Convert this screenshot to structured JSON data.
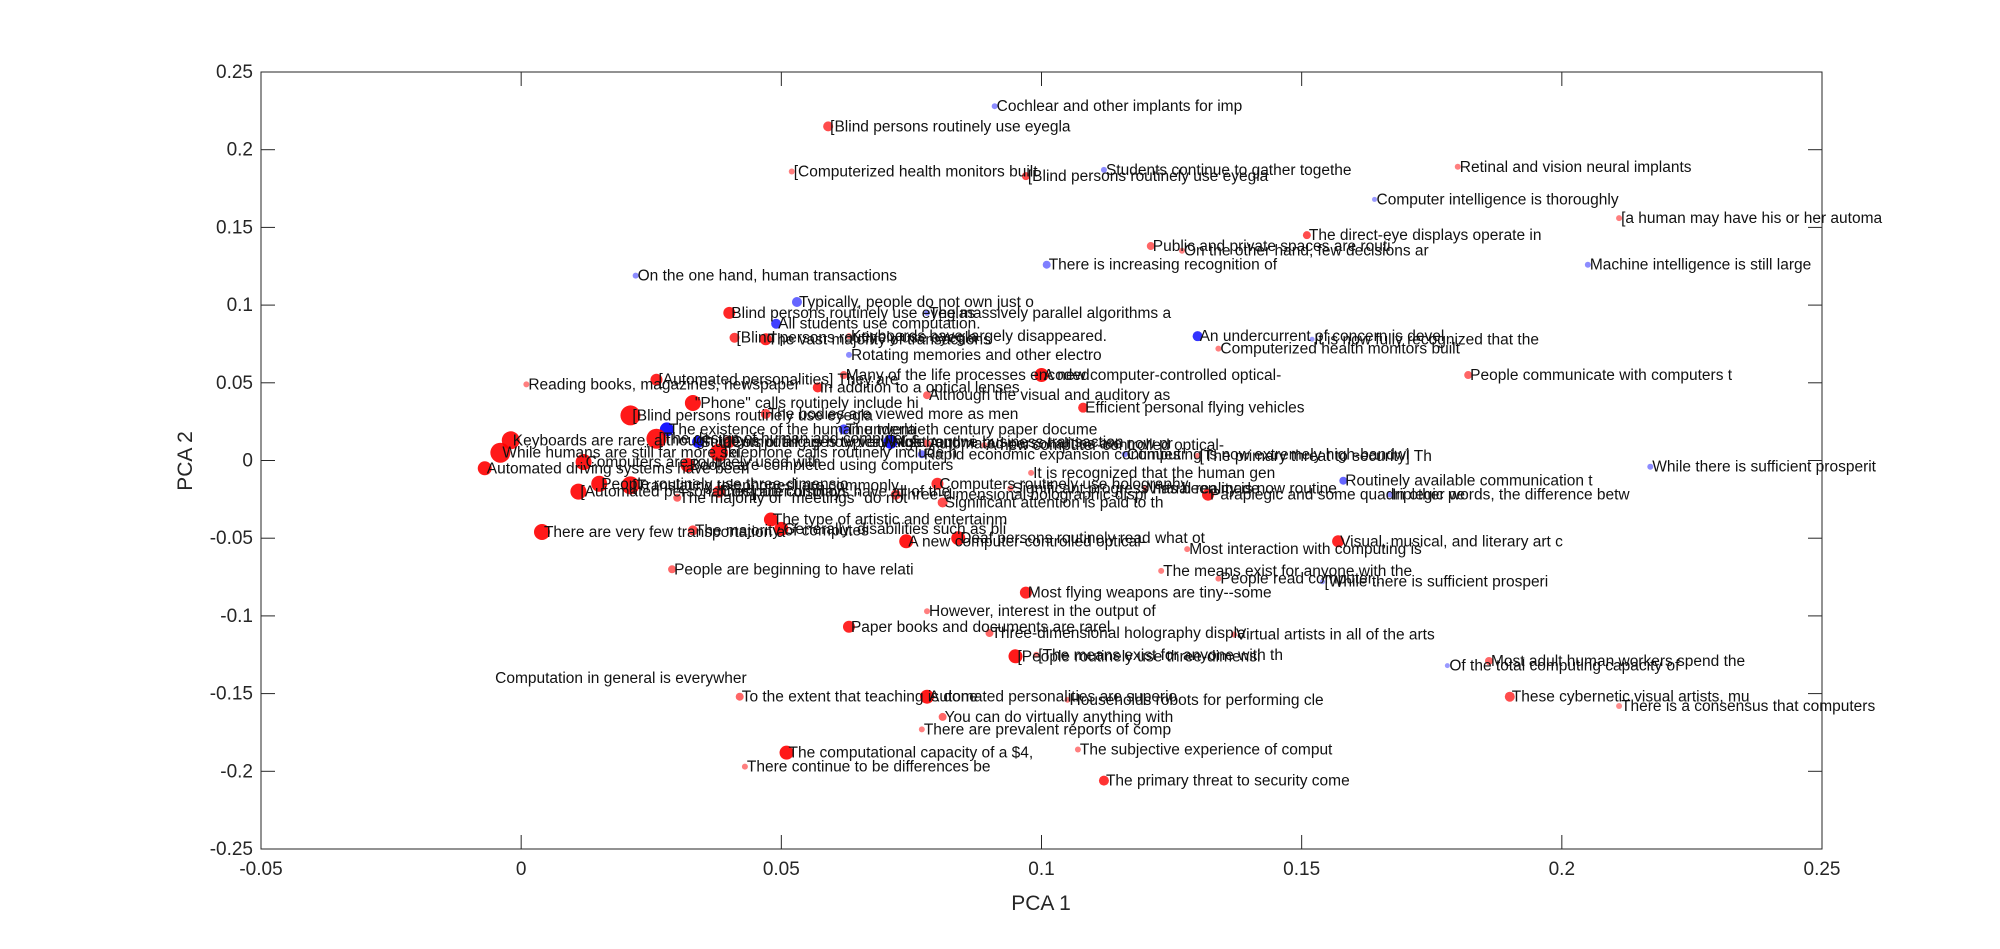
{
  "colors": {
    "red": "#ff0000",
    "blue": "#0000ff",
    "axis": "#262626"
  },
  "chart_data": {
    "type": "scatter",
    "xlabel": "PCA 1",
    "ylabel": "PCA 2",
    "xlim": [
      -0.05,
      0.25
    ],
    "ylim": [
      -0.25,
      0.25
    ],
    "xticks": [
      "-0.05",
      "0",
      "0.05",
      "0.1",
      "0.15",
      "0.2",
      "0.25"
    ],
    "yticks": [
      "0.25",
      "0.2",
      "0.15",
      "0.1",
      "0.05",
      "0",
      "-0.05",
      "-0.1",
      "-0.15",
      "-0.2",
      "-0.25"
    ],
    "grid": false,
    "points": [
      {
        "x": 0.091,
        "y": 0.228,
        "c": "blue",
        "s": 3,
        "o": 0.45,
        "label": "Cochlear and other implants for imp"
      },
      {
        "x": 0.059,
        "y": 0.215,
        "c": "red",
        "s": 5,
        "o": 0.7,
        "label": "[Blind persons routinely use eyegla"
      },
      {
        "x": 0.052,
        "y": 0.186,
        "c": "red",
        "s": 3,
        "o": 0.5,
        "label": "[Computerized health monitors built"
      },
      {
        "x": 0.097,
        "y": 0.183,
        "c": "red",
        "s": 4,
        "o": 0.7,
        "label": "[Blind persons routinely use eyegla"
      },
      {
        "x": 0.112,
        "y": 0.187,
        "c": "blue",
        "s": 3,
        "o": 0.45,
        "label": "Students continue to gather togethe"
      },
      {
        "x": 0.18,
        "y": 0.189,
        "c": "red",
        "s": 3,
        "o": 0.5,
        "label": "Retinal and vision neural implants"
      },
      {
        "x": 0.164,
        "y": 0.168,
        "c": "blue",
        "s": 2.5,
        "o": 0.4,
        "label": "Computer intelligence is thoroughly"
      },
      {
        "x": 0.211,
        "y": 0.156,
        "c": "red",
        "s": 3,
        "o": 0.5,
        "label": "[a human may have his or her automa"
      },
      {
        "x": 0.151,
        "y": 0.145,
        "c": "red",
        "s": 4,
        "o": 0.7,
        "label": "The direct-eye displays operate in"
      },
      {
        "x": 0.121,
        "y": 0.138,
        "c": "red",
        "s": 4,
        "o": 0.6,
        "label": "Public and private spaces are routi"
      },
      {
        "x": 0.127,
        "y": 0.135,
        "c": "red",
        "s": 3,
        "o": 0.5,
        "label": "On the other hand, few decisions ar"
      },
      {
        "x": 0.101,
        "y": 0.126,
        "c": "blue",
        "s": 4,
        "o": 0.5,
        "label": "There is increasing recognition of"
      },
      {
        "x": 0.205,
        "y": 0.126,
        "c": "blue",
        "s": 3,
        "o": 0.45,
        "label": "Machine intelligence is still large"
      },
      {
        "x": 0.022,
        "y": 0.119,
        "c": "blue",
        "s": 3,
        "o": 0.45,
        "label": "On the one hand, human transactions"
      },
      {
        "x": 0.053,
        "y": 0.102,
        "c": "blue",
        "s": 5,
        "o": 0.6,
        "label": "Typically, people do not own just o"
      },
      {
        "x": 0.078,
        "y": 0.095,
        "c": "blue",
        "s": 3,
        "o": 0.45,
        "label": "The massively parallel algorithms a"
      },
      {
        "x": 0.04,
        "y": 0.095,
        "c": "red",
        "s": 6,
        "o": 0.85,
        "label": "Blind persons routinely use eyeglas"
      },
      {
        "x": 0.049,
        "y": 0.088,
        "c": "blue",
        "s": 5,
        "o": 0.75,
        "label": "All students use computation."
      },
      {
        "x": 0.041,
        "y": 0.079,
        "c": "red",
        "s": 5,
        "o": 0.75,
        "label": "[Blind persons routinely use eyegla"
      },
      {
        "x": 0.047,
        "y": 0.078,
        "c": "red",
        "s": 6,
        "o": 0.85,
        "label": "The vast majority of transactions"
      },
      {
        "x": 0.063,
        "y": 0.08,
        "c": "red",
        "s": 3,
        "o": 0.5,
        "label": "Keyboards have largely disappeared."
      },
      {
        "x": 0.13,
        "y": 0.08,
        "c": "blue",
        "s": 5,
        "o": 0.8,
        "label": "An undercurrent of concern is devel"
      },
      {
        "x": 0.152,
        "y": 0.078,
        "c": "blue",
        "s": 2.5,
        "o": 0.4,
        "label": "It is now fully recognized that the"
      },
      {
        "x": 0.063,
        "y": 0.068,
        "c": "blue",
        "s": 3,
        "o": 0.45,
        "label": "Rotating memories and other electro"
      },
      {
        "x": 0.134,
        "y": 0.072,
        "c": "red",
        "s": 3,
        "o": 0.5,
        "label": "Computerized health monitors built"
      },
      {
        "x": 0.001,
        "y": 0.049,
        "c": "red",
        "s": 3,
        "o": 0.5,
        "label": "Reading books, magazines, newspaper"
      },
      {
        "x": 0.026,
        "y": 0.052,
        "c": "red",
        "s": 6,
        "o": 0.85,
        "label": "[Automated personalities] They are"
      },
      {
        "x": 0.062,
        "y": 0.055,
        "c": "red",
        "s": 4,
        "o": 0.6,
        "label": "Many of the life processes encoded"
      },
      {
        "x": 0.1,
        "y": 0.055,
        "c": "red",
        "s": 7,
        "o": 0.9,
        "label": "A new computer-controlled optical-"
      },
      {
        "x": 0.182,
        "y": 0.055,
        "c": "red",
        "s": 4,
        "o": 0.6,
        "label": "People communicate with computers t"
      },
      {
        "x": 0.057,
        "y": 0.047,
        "c": "red",
        "s": 5,
        "o": 0.8,
        "label": "In addition to a optical lenses"
      },
      {
        "x": 0.078,
        "y": 0.042,
        "c": "red",
        "s": 4,
        "o": 0.6,
        "label": "Although the visual and auditory as"
      },
      {
        "x": 0.033,
        "y": 0.037,
        "c": "red",
        "s": 8,
        "o": 0.9,
        "label": "\"Phone\" calls routinely include hi"
      },
      {
        "x": 0.108,
        "y": 0.034,
        "c": "red",
        "s": 5,
        "o": 0.8,
        "label": "Efficient personal flying vehicles"
      },
      {
        "x": 0.021,
        "y": 0.029,
        "c": "red",
        "s": 10,
        "o": 0.9,
        "label": "[Blind persons routinely use eyegla"
      },
      {
        "x": 0.047,
        "y": 0.03,
        "c": "red",
        "s": 5,
        "o": 0.7,
        "label": "The bodies are viewed more as men"
      },
      {
        "x": 0.028,
        "y": 0.02,
        "c": "blue",
        "s": 7,
        "o": 0.9,
        "label": "The existence of the human underla"
      },
      {
        "x": 0.062,
        "y": 0.02,
        "c": "blue",
        "s": 5,
        "o": 0.7,
        "label": "The twentieth century paper docume"
      },
      {
        "x": -0.002,
        "y": 0.013,
        "c": "red",
        "s": 9,
        "o": 0.9,
        "label": "Keyboards are rare, although they s"
      },
      {
        "x": 0.026,
        "y": 0.014,
        "c": "red",
        "s": 10,
        "o": 0.9,
        "label": "[The design of human and computer s"
      },
      {
        "x": 0.034,
        "y": 0.012,
        "c": "blue",
        "s": 6,
        "o": 0.9,
        "label": "Students of all ages typically use"
      },
      {
        "x": 0.04,
        "y": 0.012,
        "c": "red",
        "s": 6,
        "o": 0.8,
        "label": "Computing is now very high bandwi"
      },
      {
        "x": 0.071,
        "y": 0.012,
        "c": "blue",
        "s": 7,
        "o": 0.9,
        "label": "Most routine business transaction"
      },
      {
        "x": 0.078,
        "y": 0.011,
        "c": "red",
        "s": 4,
        "o": 0.6,
        "label": "Automated personalities are now pr"
      },
      {
        "x": 0.089,
        "y": 0.01,
        "c": "red",
        "s": 3,
        "o": 0.5,
        "label": "A new computer-controlled optical-"
      },
      {
        "x": -0.004,
        "y": 0.005,
        "c": "red",
        "s": 10,
        "o": 0.9,
        "label": "While humans are still far more ski"
      },
      {
        "x": 0.038,
        "y": 0.005,
        "c": "red",
        "s": 9,
        "o": 0.9,
        "label": "Telephone calls routinely include h"
      },
      {
        "x": 0.077,
        "y": 0.004,
        "c": "blue",
        "s": 4,
        "o": 0.55,
        "label": "Rapid economic expansion continues"
      },
      {
        "x": 0.116,
        "y": 0.004,
        "c": "blue",
        "s": 3,
        "o": 0.45,
        "label": "Computing is now extremely high-bandwi"
      },
      {
        "x": 0.13,
        "y": 0.003,
        "c": "red",
        "s": 3,
        "o": 0.5,
        "label": "[The primary threat to security] Th"
      },
      {
        "x": 0.217,
        "y": -0.004,
        "c": "blue",
        "s": 3,
        "o": 0.45,
        "label": "While there is sufficient prosperit"
      },
      {
        "x": -0.007,
        "y": -0.005,
        "c": "red",
        "s": 7,
        "o": 0.9,
        "label": "Automated driving systems have been"
      },
      {
        "x": 0.012,
        "y": -0.001,
        "c": "red",
        "s": 8,
        "o": 0.9,
        "label": "Computers are routinely used with"
      },
      {
        "x": 0.032,
        "y": -0.003,
        "c": "red",
        "s": 7,
        "o": 0.9,
        "label": "Books are completed using computers"
      },
      {
        "x": 0.098,
        "y": -0.008,
        "c": "red",
        "s": 3,
        "o": 0.5,
        "label": "It is recognized that the human gen"
      },
      {
        "x": 0.158,
        "y": -0.013,
        "c": "blue",
        "s": 4,
        "o": 0.6,
        "label": "Routinely available communication t"
      },
      {
        "x": 0.015,
        "y": -0.015,
        "c": "red",
        "s": 8,
        "o": 0.9,
        "label": "People routinely use three-dimensio"
      },
      {
        "x": 0.021,
        "y": -0.016,
        "c": "red",
        "s": 9,
        "o": 0.9,
        "label": "[Translating telephones] are commonly"
      },
      {
        "x": 0.08,
        "y": -0.015,
        "c": "red",
        "s": 6,
        "o": 0.8,
        "label": "Computers routinely use holography"
      },
      {
        "x": 0.094,
        "y": -0.018,
        "c": "red",
        "s": 3,
        "o": 0.5,
        "label": "Significant progress has been made"
      },
      {
        "x": 0.12,
        "y": -0.018,
        "c": "red",
        "s": 3,
        "o": 0.5,
        "label": "Virtual reality is now routine"
      },
      {
        "x": 0.011,
        "y": -0.02,
        "c": "red",
        "s": 8,
        "o": 0.9,
        "label": "[Automated personalities] are common"
      },
      {
        "x": 0.038,
        "y": -0.02,
        "c": "red",
        "s": 6,
        "o": 0.8,
        "label": "Computer displays have all of the"
      },
      {
        "x": 0.072,
        "y": -0.022,
        "c": "red",
        "s": 5,
        "o": 0.7,
        "label": "Three-dimensional holographic displ"
      },
      {
        "x": 0.132,
        "y": -0.022,
        "c": "red",
        "s": 6,
        "o": 0.85,
        "label": "Paraplegic and some quadriplegic pe"
      },
      {
        "x": 0.167,
        "y": -0.022,
        "c": "blue",
        "s": 3,
        "o": 0.45,
        "label": "In other words, the difference betw"
      },
      {
        "x": 0.03,
        "y": -0.024,
        "c": "red",
        "s": 4,
        "o": 0.6,
        "label": "The majority of \"meetings\" do not"
      },
      {
        "x": 0.081,
        "y": -0.027,
        "c": "red",
        "s": 5,
        "o": 0.7,
        "label": "Significant attention is paid to th"
      },
      {
        "x": 0.048,
        "y": -0.038,
        "c": "red",
        "s": 7,
        "o": 0.9,
        "label": "The type of artistic and entertainm"
      },
      {
        "x": 0.004,
        "y": -0.046,
        "c": "red",
        "s": 8,
        "o": 0.9,
        "label": "There are very few transportation a"
      },
      {
        "x": 0.033,
        "y": -0.045,
        "c": "red",
        "s": 5,
        "o": 0.7,
        "label": "The majority of computes"
      },
      {
        "x": 0.05,
        "y": -0.044,
        "c": "red",
        "s": 7,
        "o": 0.9,
        "label": "Generally, disabilities such as bli"
      },
      {
        "x": 0.074,
        "y": -0.052,
        "c": "red",
        "s": 7,
        "o": 0.9,
        "label": "A new computer-controlled optical-"
      },
      {
        "x": 0.084,
        "y": -0.05,
        "c": "red",
        "s": 7,
        "o": 0.9,
        "label": "Deaf persons routinely read what ot"
      },
      {
        "x": 0.128,
        "y": -0.057,
        "c": "red",
        "s": 3,
        "o": 0.5,
        "label": "Most interaction with computing is"
      },
      {
        "x": 0.157,
        "y": -0.052,
        "c": "red",
        "s": 6,
        "o": 0.85,
        "label": "Visual, musical, and literary art c"
      },
      {
        "x": 0.029,
        "y": -0.07,
        "c": "red",
        "s": 4,
        "o": 0.6,
        "label": "People are beginning to have relati"
      },
      {
        "x": 0.123,
        "y": -0.071,
        "c": "red",
        "s": 3,
        "o": 0.5,
        "label": "The means exist for anyone with the"
      },
      {
        "x": 0.134,
        "y": -0.076,
        "c": "red",
        "s": 3,
        "o": 0.5,
        "label": "People read computer..."
      },
      {
        "x": 0.154,
        "y": -0.078,
        "c": "blue",
        "s": 2.5,
        "o": 0.4,
        "label": "[While there is sufficient prosperi"
      },
      {
        "x": 0.097,
        "y": -0.085,
        "c": "red",
        "s": 6,
        "o": 0.85,
        "label": "Most flying weapons are tiny--some"
      },
      {
        "x": 0.078,
        "y": -0.097,
        "c": "red",
        "s": 3,
        "o": 0.5,
        "label": "However, interest in the output of"
      },
      {
        "x": 0.063,
        "y": -0.107,
        "c": "red",
        "s": 6,
        "o": 0.85,
        "label": "Paper books and documents are rarel"
      },
      {
        "x": 0.09,
        "y": -0.111,
        "c": "red",
        "s": 4,
        "o": 0.6,
        "label": "Three-dimensional holography displa"
      },
      {
        "x": 0.137,
        "y": -0.112,
        "c": "red",
        "s": 3,
        "o": 0.5,
        "label": "Virtual artists in all of the arts"
      },
      {
        "x": 0.095,
        "y": -0.126,
        "c": "red",
        "s": 7,
        "o": 0.9,
        "label": "[People routinely use three-dimensi"
      },
      {
        "x": 0.099,
        "y": -0.125,
        "c": "red",
        "s": 3,
        "o": 0.5,
        "label": "[The means exist for anyone with th"
      },
      {
        "x": 0.186,
        "y": -0.129,
        "c": "red",
        "s": 4,
        "o": 0.6,
        "label": "Most adult human workers spend the"
      },
      {
        "x": 0.178,
        "y": -0.132,
        "c": "blue",
        "s": 2.5,
        "o": 0.4,
        "label": "Of the total computing capacity of"
      },
      {
        "x": 0.042,
        "y": -0.152,
        "c": "red",
        "s": 4,
        "o": 0.6,
        "label": "To the extent that teaching is done"
      },
      {
        "x": 0.078,
        "y": -0.152,
        "c": "red",
        "s": 7,
        "o": 0.9,
        "label": "Automated personalities are superio"
      },
      {
        "x": 0.105,
        "y": -0.154,
        "c": "red",
        "s": 3,
        "o": 0.5,
        "label": "Households robots for performing cle"
      },
      {
        "x": 0.19,
        "y": -0.152,
        "c": "red",
        "s": 5,
        "o": 0.7,
        "label": "These cybernetic visual artists, mu"
      },
      {
        "x": 0.211,
        "y": -0.158,
        "c": "red",
        "s": 3,
        "o": 0.45,
        "label": "There is a consensus that computers"
      },
      {
        "x": 0.081,
        "y": -0.165,
        "c": "red",
        "s": 4,
        "o": 0.6,
        "label": "You can do virtually anything with"
      },
      {
        "x": 0.077,
        "y": -0.173,
        "c": "red",
        "s": 3,
        "o": 0.5,
        "label": "There are prevalent reports of comp"
      },
      {
        "x": 0.051,
        "y": -0.188,
        "c": "red",
        "s": 7,
        "o": 0.9,
        "label": "The computational capacity of a $4,"
      },
      {
        "x": 0.107,
        "y": -0.186,
        "c": "red",
        "s": 3,
        "o": 0.5,
        "label": "The subjective experience of comput"
      },
      {
        "x": 0.043,
        "y": -0.197,
        "c": "red",
        "s": 3,
        "o": 0.5,
        "label": "There continue to be differences be"
      },
      {
        "x": 0.112,
        "y": -0.206,
        "c": "red",
        "s": 5,
        "o": 0.8,
        "label": "The primary threat to security come"
      }
    ],
    "annotations": [
      {
        "x": -0.005,
        "y": -0.14,
        "text": "Computation in general is everywher"
      }
    ]
  }
}
